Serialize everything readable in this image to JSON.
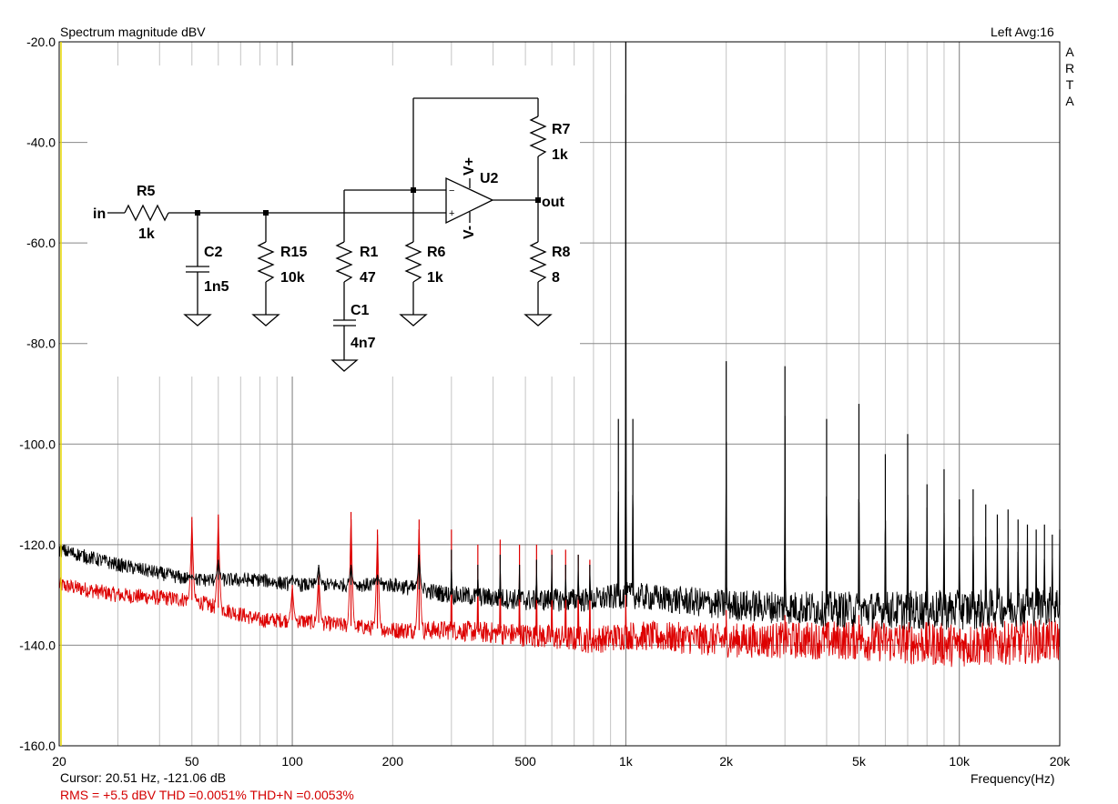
{
  "header": {
    "title": "Spectrum magnitude dBV",
    "channel_info": "Left  Avg:16",
    "brand_vertical": [
      "A",
      "R",
      "T",
      "A"
    ]
  },
  "footer": {
    "cursor": "Cursor: 20.51 Hz, -121.06 dB",
    "xlabel": "Frequency(Hz)",
    "measurements": "RMS =   +5.5 dBV   THD =0.0051%   THD+N =0.0053%"
  },
  "colors": {
    "background": "#ffffff",
    "grid": "#a9a9a9",
    "trace_black": "#000000",
    "trace_red": "#dd0000",
    "axis_highlight": "#e8d800"
  },
  "schematic": {
    "labels": {
      "input": "in",
      "output": "out",
      "r5_name": "R5",
      "r5_value": "1k",
      "c2_name": "C2",
      "c2_value": "1n5",
      "r15_name": "R15",
      "r15_value": "10k",
      "r1_name": "R1",
      "r1_value": "47",
      "c1_name": "C1",
      "c1_value": "4n7",
      "r6_name": "R6",
      "r6_value": "1k",
      "r7_name": "R7",
      "r7_value": "1k",
      "r8_name": "R8",
      "r8_value": "8",
      "u2_name": "U2",
      "vplus": "V+",
      "vminus": "V-",
      "pin_plus": "+",
      "pin_minus": "−"
    }
  },
  "chart_data": {
    "type": "line",
    "title": "Spectrum magnitude dBV",
    "xlabel": "Frequency(Hz)",
    "ylabel": "",
    "x_scale": "log",
    "xlim": [
      20,
      20000
    ],
    "ylim": [
      -160,
      -20
    ],
    "grid": true,
    "x_ticks": [
      {
        "value": 20,
        "label": "20"
      },
      {
        "value": 50,
        "label": "50"
      },
      {
        "value": 100,
        "label": "100"
      },
      {
        "value": 200,
        "label": "200"
      },
      {
        "value": 500,
        "label": "500"
      },
      {
        "value": 1000,
        "label": "1k"
      },
      {
        "value": 2000,
        "label": "2k"
      },
      {
        "value": 5000,
        "label": "5k"
      },
      {
        "value": 10000,
        "label": "10k"
      },
      {
        "value": 20000,
        "label": "20k"
      }
    ],
    "y_ticks": [
      {
        "value": -20,
        "label": "-20.0"
      },
      {
        "value": -40,
        "label": "-40.0"
      },
      {
        "value": -60,
        "label": "-60.0"
      },
      {
        "value": -80,
        "label": "-80.0"
      },
      {
        "value": -100,
        "label": "-100.0"
      },
      {
        "value": -120,
        "label": "-120.0"
      },
      {
        "value": -140,
        "label": "-140.0"
      },
      {
        "value": -160,
        "label": "-160.0"
      }
    ],
    "series": [
      {
        "color": "#000000",
        "baseline": [
          [
            20,
            -121
          ],
          [
            30,
            -124
          ],
          [
            50,
            -127
          ],
          [
            80,
            -127
          ],
          [
            100,
            -128
          ],
          [
            200,
            -128
          ],
          [
            300,
            -130
          ],
          [
            500,
            -131
          ],
          [
            800,
            -131
          ],
          [
            1000,
            -130
          ],
          [
            2000,
            -132
          ],
          [
            5000,
            -133
          ],
          [
            10000,
            -133
          ],
          [
            20000,
            -132
          ]
        ],
        "peaks": [
          [
            50,
            -126
          ],
          [
            60,
            -123
          ],
          [
            100,
            -126
          ],
          [
            120,
            -124
          ],
          [
            150,
            -124
          ],
          [
            180,
            -126
          ],
          [
            240,
            -122
          ],
          [
            300,
            -121
          ],
          [
            360,
            -124
          ],
          [
            420,
            -122
          ],
          [
            480,
            -124
          ],
          [
            540,
            -123
          ],
          [
            600,
            -122
          ],
          [
            660,
            -124
          ],
          [
            720,
            -122
          ],
          [
            780,
            -124
          ],
          [
            950,
            -95
          ],
          [
            1000,
            -20
          ],
          [
            1050,
            -95
          ],
          [
            2000,
            -83.5
          ],
          [
            3000,
            -84.5
          ],
          [
            4000,
            -95
          ],
          [
            5000,
            -92
          ],
          [
            6000,
            -102
          ],
          [
            7000,
            -98
          ],
          [
            8000,
            -108
          ],
          [
            9000,
            -105
          ],
          [
            10000,
            -111
          ],
          [
            11000,
            -109
          ],
          [
            12000,
            -112
          ],
          [
            13000,
            -114
          ],
          [
            14000,
            -113
          ],
          [
            15000,
            -115
          ],
          [
            16000,
            -116
          ],
          [
            17000,
            -117
          ],
          [
            18000,
            -116
          ],
          [
            19000,
            -118
          ],
          [
            20000,
            -117
          ]
        ]
      },
      {
        "color": "#dd0000",
        "baseline": [
          [
            20,
            -128
          ],
          [
            30,
            -130
          ],
          [
            50,
            -131
          ],
          [
            80,
            -135
          ],
          [
            100,
            -135
          ],
          [
            200,
            -137
          ],
          [
            300,
            -137
          ],
          [
            500,
            -138
          ],
          [
            800,
            -139
          ],
          [
            1000,
            -138
          ],
          [
            2000,
            -139
          ],
          [
            5000,
            -139
          ],
          [
            10000,
            -140
          ],
          [
            20000,
            -139
          ]
        ],
        "peaks": [
          [
            50,
            -114.5
          ],
          [
            60,
            -114
          ],
          [
            100,
            -128
          ],
          [
            120,
            -125
          ],
          [
            150,
            -113.5
          ],
          [
            180,
            -117
          ],
          [
            240,
            -115
          ],
          [
            300,
            -117
          ],
          [
            360,
            -120
          ],
          [
            420,
            -119
          ],
          [
            480,
            -120
          ],
          [
            540,
            -120
          ],
          [
            600,
            -121
          ],
          [
            660,
            -121
          ],
          [
            720,
            -122
          ],
          [
            780,
            -123
          ],
          [
            1000,
            -130
          ],
          [
            2000,
            -133
          ],
          [
            3000,
            -134
          ],
          [
            5000,
            -134
          ]
        ]
      }
    ]
  }
}
